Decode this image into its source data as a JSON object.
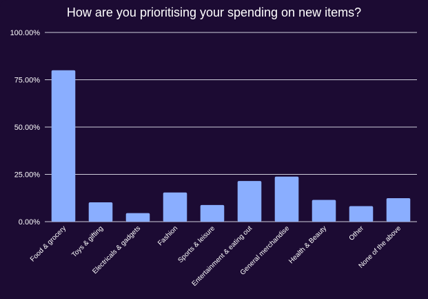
{
  "chart_data": {
    "type": "bar",
    "title": "How are you prioritising your spending on new items?",
    "categories": [
      "Food & grocery",
      "Toys & gifting",
      "Electricals & gadgets",
      "Fashion",
      "Sports & leisure",
      "Entertainment & eating out",
      "General merchandise",
      "Health & Beauty",
      "Other",
      "None of the above"
    ],
    "values": [
      80.0,
      10.2,
      4.5,
      15.4,
      8.8,
      21.5,
      23.8,
      11.5,
      8.2,
      12.4
    ],
    "ylim": [
      0,
      100
    ],
    "yticks": [
      "0.00%",
      "25.00%",
      "50.00%",
      "75.00%",
      "100.00%"
    ],
    "xlabel": "",
    "ylabel": "",
    "grid": true,
    "legend": "none",
    "colors": {
      "background": "#1c0b33",
      "bar": "#8aaeff",
      "gridline": "#cfcfdc",
      "text": "#ffffff"
    }
  }
}
